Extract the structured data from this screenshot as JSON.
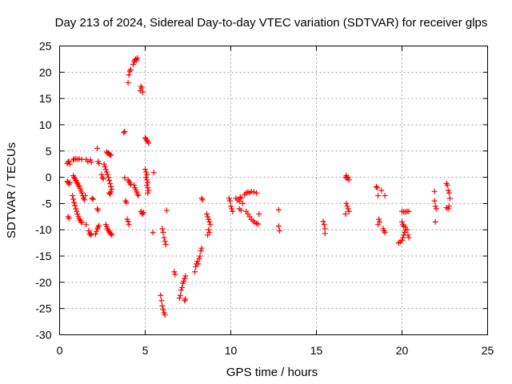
{
  "chart_data": {
    "type": "scatter",
    "title": "Day 213 of 2024, Sidereal Day-to-day VTEC variation (SDTVAR) for receiver glps",
    "xlabel": "GPS time / hours",
    "ylabel": "SDTVAR / TECUs",
    "xlim": [
      0,
      25
    ],
    "ylim": [
      -30,
      25
    ],
    "xticks": [
      0,
      5,
      10,
      15,
      20,
      25
    ],
    "yticks": [
      -30,
      -25,
      -20,
      -15,
      -10,
      -5,
      0,
      5,
      10,
      15,
      20,
      25
    ],
    "grid": true,
    "marker": "plus",
    "color": "#ff0000",
    "series": [
      {
        "name": "SDTVAR",
        "points": [
          [
            0.45,
            2.6
          ],
          [
            0.5,
            2.9
          ],
          [
            0.55,
            3.0
          ],
          [
            0.6,
            2.5
          ],
          [
            0.8,
            3.3
          ],
          [
            0.85,
            3.5
          ],
          [
            0.95,
            3.5
          ],
          [
            1.05,
            3.4
          ],
          [
            1.15,
            3.5
          ],
          [
            1.3,
            3.4
          ],
          [
            1.55,
            3.4
          ],
          [
            1.65,
            3.0
          ],
          [
            1.8,
            3.3
          ],
          [
            1.85,
            2.9
          ],
          [
            0.45,
            -0.8
          ],
          [
            0.5,
            -1.0
          ],
          [
            0.55,
            -1.3
          ],
          [
            0.6,
            -1.0
          ],
          [
            0.5,
            -7.5
          ],
          [
            0.55,
            -7.8
          ],
          [
            0.8,
            0.3
          ],
          [
            0.85,
            0.0
          ],
          [
            0.9,
            -0.3
          ],
          [
            0.95,
            -0.6
          ],
          [
            1.0,
            -0.9
          ],
          [
            1.05,
            -1.2
          ],
          [
            1.1,
            -1.5
          ],
          [
            1.15,
            -1.8
          ],
          [
            1.2,
            -2.2
          ],
          [
            1.25,
            -2.6
          ],
          [
            1.3,
            -3.0
          ],
          [
            1.35,
            -3.5
          ],
          [
            1.4,
            -4.0
          ],
          [
            1.45,
            -4.3
          ],
          [
            0.75,
            -3.5
          ],
          [
            0.8,
            -4.2
          ],
          [
            0.85,
            -4.8
          ],
          [
            0.9,
            -5.4
          ],
          [
            0.95,
            -6.0
          ],
          [
            1.0,
            -6.5
          ],
          [
            1.05,
            -7.0
          ],
          [
            1.1,
            -7.5
          ],
          [
            1.15,
            -7.9
          ],
          [
            1.2,
            -8.2
          ],
          [
            1.25,
            -8.5
          ],
          [
            1.3,
            -8.6
          ],
          [
            1.5,
            -3.5
          ],
          [
            1.55,
            -9.0
          ],
          [
            1.7,
            -10.2
          ],
          [
            1.75,
            -10.7
          ],
          [
            1.8,
            -11.0
          ],
          [
            1.85,
            -10.8
          ],
          [
            1.9,
            -4.0
          ],
          [
            1.95,
            -4.2
          ],
          [
            2.2,
            5.5
          ],
          [
            2.25,
            3.0
          ],
          [
            2.3,
            2.6
          ],
          [
            2.2,
            -6.0
          ],
          [
            2.25,
            -6.3
          ],
          [
            2.1,
            -10.8
          ],
          [
            2.15,
            -10.3
          ],
          [
            2.2,
            -9.8
          ],
          [
            2.25,
            -9.5
          ],
          [
            2.3,
            -9.2
          ],
          [
            2.45,
            0.5
          ],
          [
            2.5,
            0.0
          ],
          [
            2.55,
            -0.3
          ],
          [
            2.6,
            2.5
          ],
          [
            2.65,
            2.0
          ],
          [
            2.7,
            1.5
          ],
          [
            2.75,
            1.0
          ],
          [
            2.8,
            0.5
          ],
          [
            2.85,
            0.0
          ],
          [
            2.9,
            -0.6
          ],
          [
            2.95,
            -1.2
          ],
          [
            3.0,
            -1.8
          ],
          [
            3.05,
            -2.3
          ],
          [
            3.0,
            -2.8
          ],
          [
            2.95,
            -3.2
          ],
          [
            2.9,
            -3.0
          ],
          [
            2.75,
            4.8
          ],
          [
            2.8,
            4.6
          ],
          [
            2.85,
            4.6
          ],
          [
            2.9,
            4.4
          ],
          [
            2.95,
            4.3
          ],
          [
            3.0,
            4.2
          ],
          [
            2.7,
            -9.0
          ],
          [
            2.75,
            -9.4
          ],
          [
            2.8,
            -9.8
          ],
          [
            2.85,
            -10.1
          ],
          [
            2.9,
            -10.4
          ],
          [
            2.95,
            -10.6
          ],
          [
            3.0,
            -10.8
          ],
          [
            3.05,
            -11.0
          ],
          [
            3.75,
            8.5
          ],
          [
            3.8,
            8.7
          ],
          [
            3.8,
            -0.1
          ],
          [
            3.85,
            -4.5
          ],
          [
            3.9,
            -4.8
          ],
          [
            4.0,
            -0.5
          ],
          [
            4.05,
            -0.8
          ],
          [
            4.1,
            -1.1
          ],
          [
            4.15,
            -1.4
          ],
          [
            3.95,
            -8.0
          ],
          [
            4.0,
            -8.4
          ],
          [
            4.05,
            -9.0
          ],
          [
            4.0,
            18.0
          ],
          [
            4.05,
            19.5
          ],
          [
            4.1,
            20.2
          ],
          [
            4.15,
            20.5
          ],
          [
            4.3,
            21.5
          ],
          [
            4.35,
            22.0
          ],
          [
            4.4,
            22.3
          ],
          [
            4.45,
            22.5
          ],
          [
            4.5,
            22.3
          ],
          [
            4.55,
            22.7
          ],
          [
            4.35,
            -1.5
          ],
          [
            4.4,
            -2.0
          ],
          [
            4.45,
            -2.4
          ],
          [
            4.5,
            -2.8
          ],
          [
            4.55,
            -3.2
          ],
          [
            4.6,
            -3.5
          ],
          [
            4.7,
            16.5
          ],
          [
            4.75,
            17.3
          ],
          [
            4.8,
            17.0
          ],
          [
            4.85,
            16.2
          ],
          [
            4.75,
            -6.5
          ],
          [
            4.8,
            -6.8
          ],
          [
            4.85,
            -7.0
          ],
          [
            4.9,
            -6.7
          ],
          [
            5.0,
            7.5
          ],
          [
            5.05,
            7.3
          ],
          [
            5.1,
            7.0
          ],
          [
            5.15,
            6.8
          ],
          [
            5.2,
            6.5
          ],
          [
            5.0,
            1.5
          ],
          [
            5.05,
            1.0
          ],
          [
            5.1,
            0.5
          ],
          [
            5.05,
            0.0
          ],
          [
            5.1,
            -0.5
          ],
          [
            5.15,
            -1.0
          ],
          [
            5.1,
            -1.5
          ],
          [
            5.15,
            -2.0
          ],
          [
            5.2,
            -2.5
          ],
          [
            5.15,
            -3.0
          ],
          [
            5.5,
            0.9
          ],
          [
            5.45,
            -10.5
          ],
          [
            5.9,
            -22.5
          ],
          [
            5.95,
            -23.5
          ],
          [
            6.0,
            -24.5
          ],
          [
            6.05,
            -25.2
          ],
          [
            6.1,
            -25.8
          ],
          [
            6.15,
            -26.2
          ],
          [
            6.0,
            -9.8
          ],
          [
            6.05,
            -10.5
          ],
          [
            6.1,
            -11.5
          ],
          [
            6.15,
            -12.2
          ],
          [
            6.2,
            -12.8
          ],
          [
            6.25,
            -6.3
          ],
          [
            6.7,
            -18.0
          ],
          [
            6.75,
            -18.5
          ],
          [
            7.0,
            -23.0
          ],
          [
            7.05,
            -22.5
          ],
          [
            7.1,
            -21.5
          ],
          [
            7.15,
            -21.0
          ],
          [
            7.2,
            -20.2
          ],
          [
            7.25,
            -19.8
          ],
          [
            7.3,
            -19.3
          ],
          [
            7.35,
            -18.8
          ],
          [
            7.3,
            -23.5
          ],
          [
            7.35,
            -23.2
          ],
          [
            7.9,
            -18.0
          ],
          [
            7.95,
            -17.0
          ],
          [
            8.0,
            -16.5
          ],
          [
            8.05,
            -16.0
          ],
          [
            8.1,
            -16.5
          ],
          [
            8.15,
            -15.5
          ],
          [
            8.2,
            -15.0
          ],
          [
            8.25,
            -14.0
          ],
          [
            8.3,
            -13.5
          ],
          [
            8.3,
            -4.0
          ],
          [
            8.35,
            -4.3
          ],
          [
            8.6,
            -7.0
          ],
          [
            8.65,
            -7.5
          ],
          [
            8.7,
            -8.0
          ],
          [
            8.75,
            -8.5
          ],
          [
            8.8,
            -9.0
          ],
          [
            8.7,
            -10.0
          ],
          [
            8.75,
            -10.5
          ],
          [
            8.65,
            -11.0
          ],
          [
            9.9,
            -4.0
          ],
          [
            9.95,
            -4.5
          ],
          [
            10.0,
            -5.5
          ],
          [
            10.05,
            -6.0
          ],
          [
            10.1,
            -6.5
          ],
          [
            10.3,
            -4.0
          ],
          [
            10.4,
            -4.3
          ],
          [
            10.5,
            -4.6
          ],
          [
            10.55,
            -3.8
          ],
          [
            10.6,
            -4.0
          ],
          [
            10.5,
            -6.0
          ],
          [
            10.6,
            -6.3
          ],
          [
            10.7,
            -5.0
          ],
          [
            10.8,
            -3.3
          ],
          [
            10.9,
            -3.0
          ],
          [
            11.0,
            -2.8
          ],
          [
            11.1,
            -3.0
          ],
          [
            11.2,
            -2.7
          ],
          [
            11.35,
            -2.8
          ],
          [
            11.5,
            -3.0
          ],
          [
            10.9,
            -6.5
          ],
          [
            11.0,
            -7.0
          ],
          [
            11.1,
            -7.5
          ],
          [
            11.2,
            -8.0
          ],
          [
            11.3,
            -8.3
          ],
          [
            11.4,
            -8.6
          ],
          [
            11.5,
            -8.8
          ],
          [
            11.6,
            -8.9
          ],
          [
            11.65,
            -7.0
          ],
          [
            12.8,
            -6.2
          ],
          [
            12.8,
            -9.3
          ],
          [
            12.85,
            -10.2
          ],
          [
            15.4,
            -8.4
          ],
          [
            15.45,
            -9.0
          ],
          [
            15.5,
            -9.8
          ],
          [
            15.5,
            -10.7
          ],
          [
            16.7,
            0.0
          ],
          [
            16.75,
            0.3
          ],
          [
            16.8,
            -0.2
          ],
          [
            16.85,
            0.0
          ],
          [
            16.9,
            -0.5
          ],
          [
            16.75,
            -5.0
          ],
          [
            16.8,
            -5.5
          ],
          [
            16.85,
            -6.0
          ],
          [
            16.9,
            -6.5
          ],
          [
            16.7,
            -7.0
          ],
          [
            18.5,
            -1.8
          ],
          [
            18.55,
            -2.0
          ],
          [
            18.6,
            -3.5
          ],
          [
            18.65,
            -8.0
          ],
          [
            18.7,
            -8.5
          ],
          [
            18.6,
            -9.0
          ],
          [
            18.8,
            -2.5
          ],
          [
            18.9,
            -9.8
          ],
          [
            18.95,
            -10.2
          ],
          [
            19.0,
            -10.5
          ],
          [
            19.0,
            -3.5
          ],
          [
            19.8,
            -12.5
          ],
          [
            19.9,
            -12.3
          ],
          [
            20.0,
            -12.0
          ],
          [
            20.05,
            -11.5
          ],
          [
            20.1,
            -11.0
          ],
          [
            20.15,
            -10.5
          ],
          [
            20.2,
            -10.0
          ],
          [
            20.0,
            -8.5
          ],
          [
            20.05,
            -9.0
          ],
          [
            20.1,
            -9.3
          ],
          [
            20.2,
            -9.5
          ],
          [
            20.3,
            -10.0
          ],
          [
            20.35,
            -11.0
          ],
          [
            20.4,
            -11.5
          ],
          [
            20.0,
            -6.5
          ],
          [
            20.1,
            -6.6
          ],
          [
            20.2,
            -6.6
          ],
          [
            20.3,
            -6.5
          ],
          [
            20.4,
            -6.5
          ],
          [
            21.9,
            -2.7
          ],
          [
            21.9,
            -4.5
          ],
          [
            21.95,
            -5.5
          ],
          [
            22.0,
            -6.0
          ],
          [
            21.95,
            -8.5
          ],
          [
            22.6,
            -1.2
          ],
          [
            22.65,
            -1.5
          ],
          [
            22.7,
            -2.5
          ],
          [
            22.75,
            -3.0
          ],
          [
            22.8,
            -4.0
          ],
          [
            22.75,
            -5.5
          ],
          [
            22.6,
            -5.8
          ],
          [
            22.7,
            -6.0
          ]
        ]
      }
    ]
  }
}
